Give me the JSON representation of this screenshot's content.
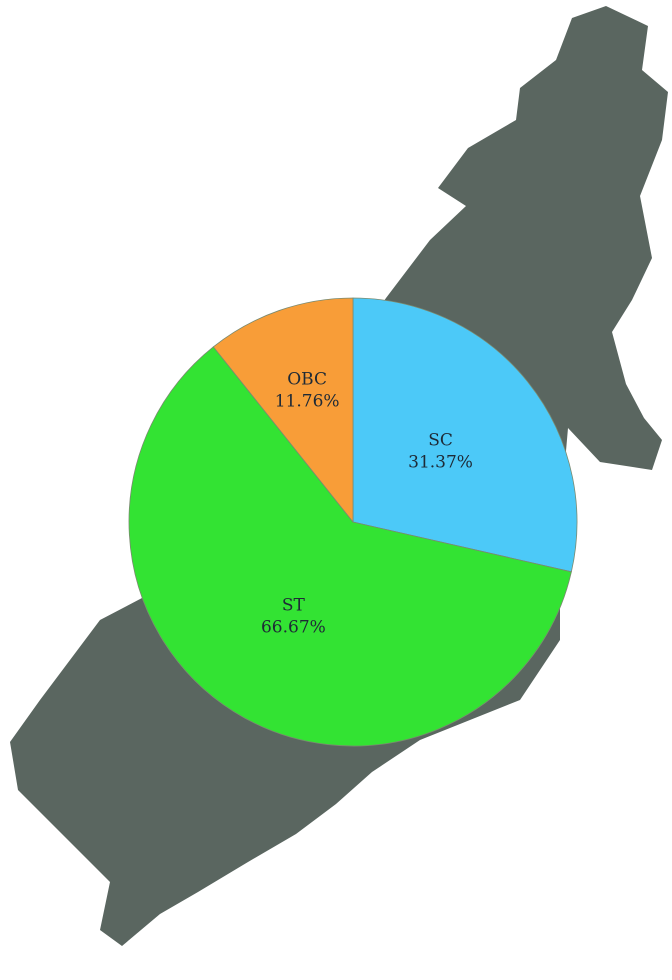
{
  "chart_data": {
    "type": "pie",
    "categories": [
      "SC",
      "ST",
      "OBC"
    ],
    "values": [
      31.37,
      66.67,
      11.76
    ],
    "value_labels": [
      "31.37%",
      "66.67%",
      "11.76%"
    ],
    "colors": [
      "#4cc9f8",
      "#33e333",
      "#f89d38"
    ]
  }
}
